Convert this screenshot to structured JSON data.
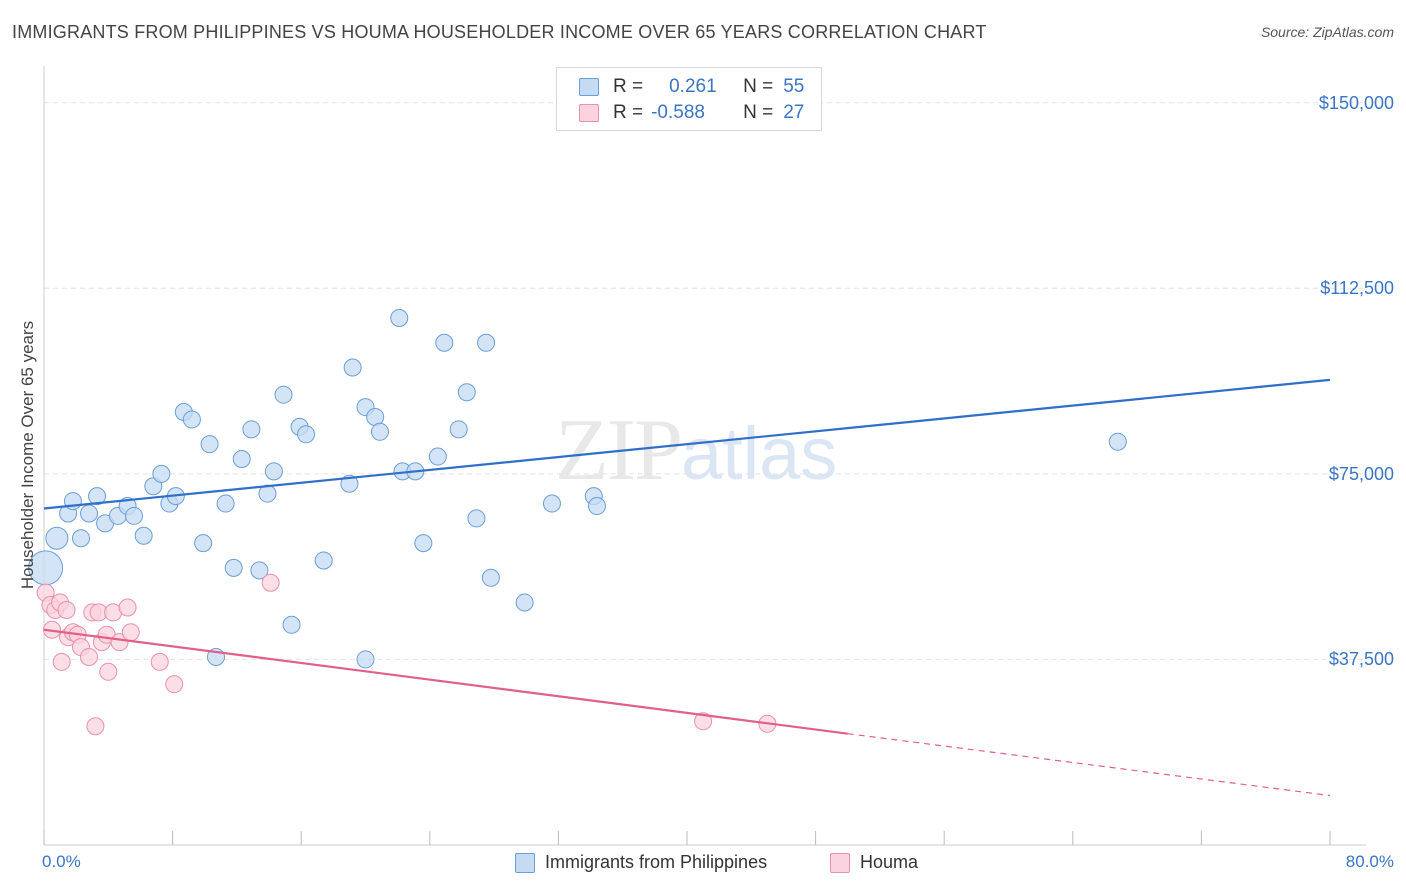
{
  "header": {
    "title": "IMMIGRANTS FROM PHILIPPINES VS HOUMA HOUSEHOLDER INCOME OVER 65 YEARS CORRELATION CHART",
    "source": "Source: ZipAtlas.com"
  },
  "watermark": {
    "zip": "ZIP",
    "atlas": "atlas"
  },
  "legend_top": {
    "rows": [
      {
        "r_label": "R =",
        "r_value": "0.261",
        "n_label": "N =",
        "n_value": "55",
        "color": "#aac8ee"
      },
      {
        "r_label": "R =",
        "r_value": "-0.588",
        "n_label": "N =",
        "n_value": "27",
        "color": "#f6b6c8"
      }
    ]
  },
  "colors": {
    "blue_point_fill": "#c5dbf4",
    "blue_point_stroke": "#6a9fd8",
    "blue_line": "#2f6fc9",
    "pink_point_fill": "#fbd3df",
    "pink_point_stroke": "#ea8fae",
    "pink_line": "#e0608a",
    "axis_label": "#3a75c4"
  },
  "chart_data": {
    "type": "scatter",
    "title": "IMMIGRANTS FROM PHILIPPINES VS HOUMA HOUSEHOLDER INCOME OVER 65 YEARS CORRELATION CHART",
    "xlabel": "",
    "ylabel": "Householder Income Over 65 years",
    "xlim": [
      0,
      80
    ],
    "ylim": [
      0,
      155000
    ],
    "x_tick_labels": [
      "0.0%",
      "80.0%"
    ],
    "y_ticks": [
      37500,
      75000,
      112500,
      150000
    ],
    "y_tick_labels": [
      "$37,500",
      "$75,000",
      "$112,500",
      "$150,000"
    ],
    "grid": true,
    "legend_position": "bottom",
    "series": [
      {
        "name": "Immigrants from Philippines",
        "trend": {
          "x": [
            0,
            80
          ],
          "y": [
            68000,
            94000
          ]
        },
        "points": [
          [
            0.1,
            56000
          ],
          [
            0.8,
            62000
          ],
          [
            1.5,
            67000
          ],
          [
            1.8,
            69500
          ],
          [
            2.3,
            62000
          ],
          [
            2.8,
            67000
          ],
          [
            3.3,
            70500
          ],
          [
            3.8,
            65000
          ],
          [
            4.6,
            66500
          ],
          [
            5.2,
            68500
          ],
          [
            5.6,
            66500
          ],
          [
            6.2,
            62500
          ],
          [
            6.8,
            72500
          ],
          [
            7.3,
            75000
          ],
          [
            7.8,
            69000
          ],
          [
            8.2,
            70500
          ],
          [
            8.7,
            87500
          ],
          [
            9.2,
            86000
          ],
          [
            9.9,
            61000
          ],
          [
            10.3,
            81000
          ],
          [
            11.3,
            69000
          ],
          [
            11.8,
            56000
          ],
          [
            12.3,
            78000
          ],
          [
            12.9,
            84000
          ],
          [
            13.4,
            55500
          ],
          [
            13.9,
            71000
          ],
          [
            14.3,
            75500
          ],
          [
            14.9,
            91000
          ],
          [
            15.4,
            44500
          ],
          [
            15.9,
            84500
          ],
          [
            16.3,
            83000
          ],
          [
            17.4,
            57500
          ],
          [
            19.0,
            73000
          ],
          [
            19.2,
            96500
          ],
          [
            20.0,
            88500
          ],
          [
            20.6,
            86500
          ],
          [
            20.9,
            83500
          ],
          [
            22.1,
            106500
          ],
          [
            22.3,
            75500
          ],
          [
            23.1,
            75500
          ],
          [
            23.6,
            61000
          ],
          [
            24.5,
            78500
          ],
          [
            24.9,
            101500
          ],
          [
            25.8,
            84000
          ],
          [
            26.3,
            91500
          ],
          [
            26.9,
            66000
          ],
          [
            27.5,
            101500
          ],
          [
            27.8,
            54000
          ],
          [
            29.9,
            49000
          ],
          [
            31.6,
            69000
          ],
          [
            34.2,
            70500
          ],
          [
            34.4,
            68500
          ],
          [
            10.7,
            38000
          ],
          [
            20.0,
            37500
          ],
          [
            66.8,
            81500
          ]
        ]
      },
      {
        "name": "Houma",
        "trend": {
          "x": [
            0,
            50
          ],
          "y": [
            43500,
            22500
          ]
        },
        "trend_dashed": {
          "x": [
            50,
            80
          ],
          "y": [
            22500,
            10000
          ]
        },
        "points": [
          [
            0.1,
            51000
          ],
          [
            0.4,
            48500
          ],
          [
            0.5,
            43500
          ],
          [
            0.7,
            47500
          ],
          [
            1.0,
            49000
          ],
          [
            1.1,
            37000
          ],
          [
            1.4,
            47500
          ],
          [
            1.5,
            42000
          ],
          [
            1.8,
            43000
          ],
          [
            2.1,
            42500
          ],
          [
            2.3,
            40000
          ],
          [
            2.8,
            38000
          ],
          [
            3.0,
            47000
          ],
          [
            3.2,
            24000
          ],
          [
            3.4,
            47000
          ],
          [
            3.6,
            41000
          ],
          [
            3.9,
            42500
          ],
          [
            4.0,
            35000
          ],
          [
            4.3,
            47000
          ],
          [
            4.7,
            41000
          ],
          [
            5.2,
            48000
          ],
          [
            5.4,
            43000
          ],
          [
            7.2,
            37000
          ],
          [
            8.1,
            32500
          ],
          [
            14.1,
            53000
          ],
          [
            41.0,
            25000
          ],
          [
            45.0,
            24500
          ]
        ]
      }
    ]
  },
  "bottom_legend": {
    "items": [
      {
        "label": "Immigrants from Philippines",
        "color": "#c5dbf4",
        "stroke": "#6a9fd8"
      },
      {
        "label": "Houma",
        "color": "#fbd3df",
        "stroke": "#ea8fae"
      }
    ]
  }
}
